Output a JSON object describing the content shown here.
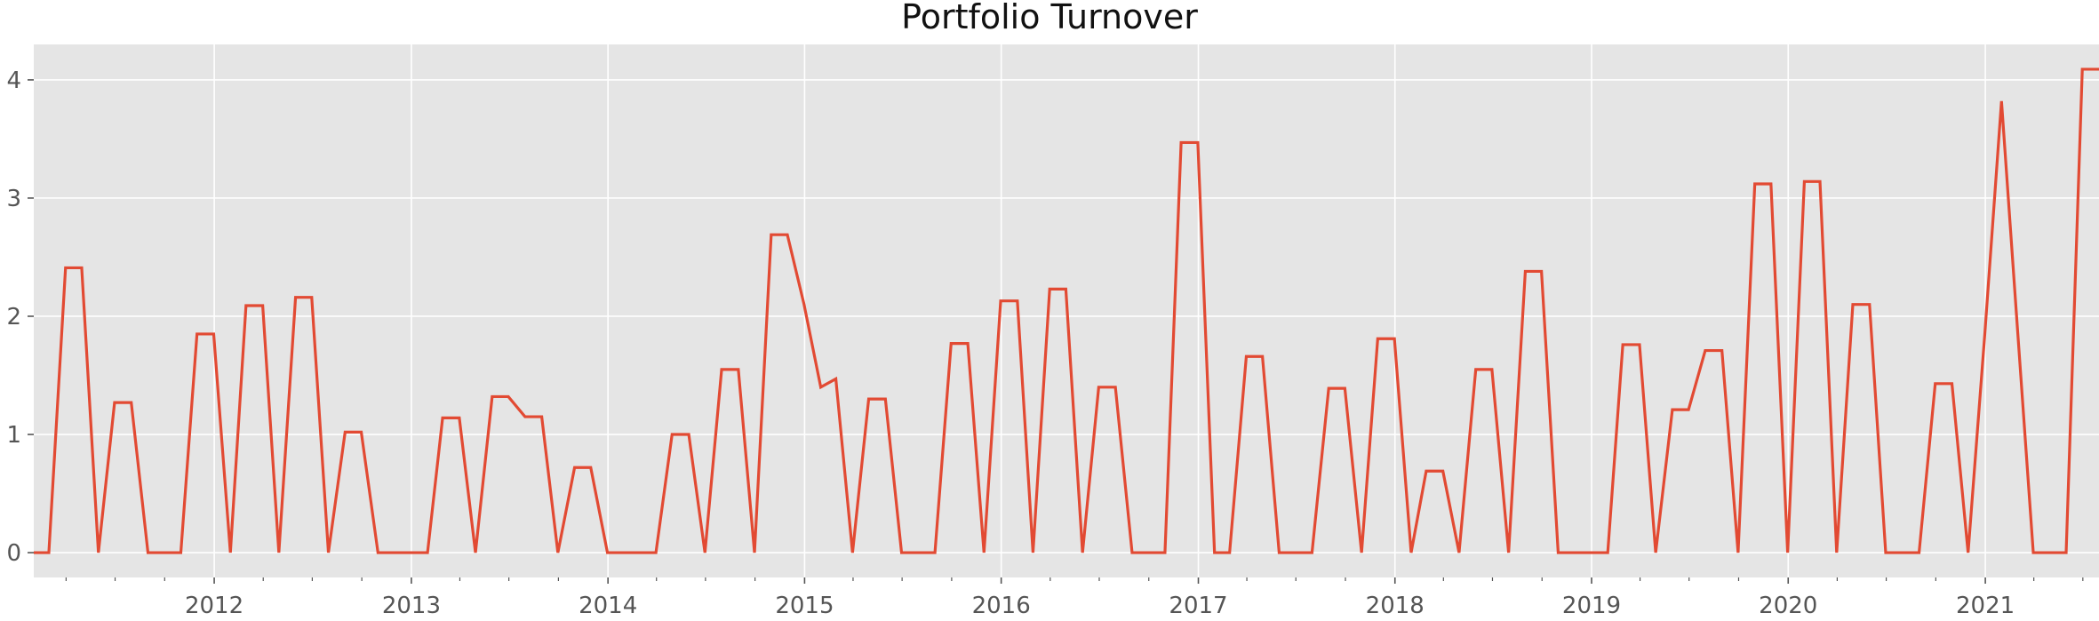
{
  "chart_data": {
    "type": "line",
    "title": "Portfolio Turnover",
    "xlabel": "",
    "ylabel": "",
    "x_range": [
      "2011-01-31",
      "2021-07-31"
    ],
    "ylim": [
      -0.21,
      4.3
    ],
    "x_ticks": [
      "2012",
      "2013",
      "2014",
      "2015",
      "2016",
      "2017",
      "2018",
      "2019",
      "2020",
      "2021"
    ],
    "y_ticks": [
      "0",
      "1",
      "2",
      "3",
      "4"
    ],
    "grid": true,
    "legend": "none",
    "colors": {
      "line": "#e24a33",
      "background": "#e5e5e5",
      "grid": "#ffffff"
    },
    "series": [
      {
        "x": [
          "2011-01-31",
          "2011-02-28",
          "2011-03-31",
          "2011-04-30",
          "2011-05-31",
          "2011-06-30",
          "2011-07-31",
          "2011-08-31",
          "2011-09-30",
          "2011-10-31",
          "2011-11-30",
          "2011-12-31",
          "2012-01-31",
          "2012-02-29",
          "2012-03-31",
          "2012-04-30",
          "2012-05-31",
          "2012-06-30",
          "2012-07-31",
          "2012-08-31",
          "2012-09-30",
          "2012-10-31",
          "2012-11-30",
          "2012-12-31",
          "2013-01-31",
          "2013-02-28",
          "2013-03-31",
          "2013-04-30",
          "2013-05-31",
          "2013-06-30",
          "2013-07-31",
          "2013-08-31",
          "2013-09-30",
          "2013-10-31",
          "2013-11-30",
          "2013-12-31",
          "2014-01-31",
          "2014-02-28",
          "2014-03-31",
          "2014-04-30",
          "2014-05-31",
          "2014-06-30",
          "2014-07-31",
          "2014-08-31",
          "2014-09-30",
          "2014-10-31",
          "2014-11-30",
          "2014-12-31",
          "2015-01-31",
          "2015-02-28",
          "2015-03-31",
          "2015-04-30",
          "2015-05-31",
          "2015-06-30",
          "2015-07-31",
          "2015-08-31",
          "2015-09-30",
          "2015-10-31",
          "2015-11-30",
          "2015-12-31",
          "2016-01-31",
          "2016-02-29",
          "2016-03-31",
          "2016-04-30",
          "2016-05-31",
          "2016-06-30",
          "2016-07-31",
          "2016-08-31",
          "2016-09-30",
          "2016-10-31",
          "2016-11-30",
          "2016-12-31",
          "2017-01-31",
          "2017-02-28",
          "2017-03-31",
          "2017-04-30",
          "2017-05-31",
          "2017-06-30",
          "2017-07-31",
          "2017-08-31",
          "2017-09-30",
          "2017-10-31",
          "2017-11-30",
          "2017-12-31",
          "2018-01-31",
          "2018-02-28",
          "2018-03-31",
          "2018-04-30",
          "2018-05-31",
          "2018-06-30",
          "2018-07-31",
          "2018-08-31",
          "2018-09-30",
          "2018-10-31",
          "2018-11-30",
          "2018-12-31",
          "2019-01-31",
          "2019-02-28",
          "2019-03-31",
          "2019-04-30",
          "2019-05-31",
          "2019-06-30",
          "2019-07-31",
          "2019-08-31",
          "2019-09-30",
          "2019-10-31",
          "2019-11-30",
          "2019-12-31",
          "2020-01-31",
          "2020-02-29",
          "2020-03-31",
          "2020-04-30",
          "2020-05-31",
          "2020-06-30",
          "2020-07-31",
          "2020-08-31",
          "2020-09-30",
          "2020-10-31",
          "2020-11-30",
          "2020-12-31",
          "2021-01-31",
          "2021-02-28",
          "2021-03-31",
          "2021-04-30",
          "2021-05-31",
          "2021-06-30",
          "2021-07-31"
        ],
        "y": [
          0,
          0,
          2.41,
          2.41,
          0,
          1.27,
          1.27,
          0,
          0,
          0,
          1.85,
          1.85,
          0,
          2.09,
          2.09,
          0,
          2.16,
          2.16,
          0,
          1.02,
          1.02,
          0,
          0,
          0,
          0,
          1.14,
          1.14,
          0,
          1.32,
          1.32,
          1.15,
          1.15,
          0,
          0.72,
          0.72,
          0,
          0,
          0,
          0,
          1.0,
          1.0,
          0,
          1.55,
          1.55,
          0,
          2.69,
          2.69,
          2.1,
          1.4,
          1.47,
          0,
          1.3,
          1.3,
          0,
          0,
          0,
          1.77,
          1.77,
          0,
          2.13,
          2.13,
          0,
          2.23,
          2.23,
          0,
          1.4,
          1.4,
          0,
          0,
          0,
          3.47,
          3.47,
          0,
          0,
          1.66,
          1.66,
          0,
          0,
          0,
          1.39,
          1.39,
          0,
          1.81,
          1.81,
          0,
          0.69,
          0.69,
          0,
          1.55,
          1.55,
          0,
          2.38,
          2.38,
          0,
          0,
          0,
          0,
          1.76,
          1.76,
          0,
          1.21,
          1.21,
          1.71,
          1.71,
          0,
          3.12,
          3.12,
          0,
          3.14,
          3.14,
          0,
          2.1,
          2.1,
          0,
          0,
          0,
          1.43,
          1.43,
          0,
          1.85,
          3.82,
          2.0,
          0,
          0,
          0,
          4.09,
          4.09
        ]
      }
    ]
  }
}
